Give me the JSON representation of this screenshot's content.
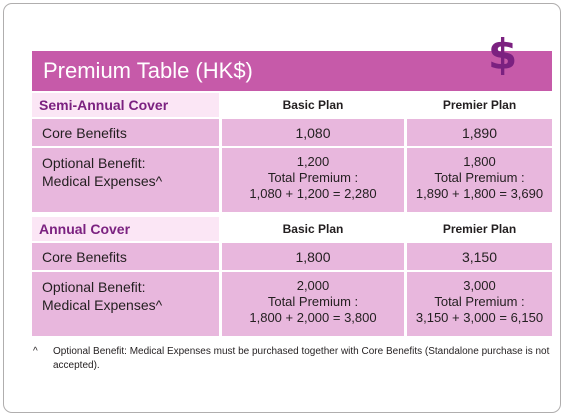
{
  "title": "Premium Table (HK$)",
  "icon_symbol": "$",
  "sections": [
    {
      "name": "Semi-Annual Cover",
      "col1": "Basic Plan",
      "col2": "Premier Plan",
      "core_label": "Core Benefits",
      "core_basic": "1,080",
      "core_premier": "1,890",
      "opt_label_line1": "Optional Benefit:",
      "opt_label_line2": "Medical Expenses^",
      "opt_basic_value": "1,200",
      "opt_basic_total_label": "Total Premium :",
      "opt_basic_total": "1,080 + 1,200 = 2,280",
      "opt_premier_value": "1,800",
      "opt_premier_total_label": "Total Premium :",
      "opt_premier_total": "1,890 + 1,800 = 3,690"
    },
    {
      "name": "Annual Cover",
      "col1": "Basic Plan",
      "col2": "Premier Plan",
      "core_label": "Core Benefits",
      "core_basic": "1,800",
      "core_premier": "3,150",
      "opt_label_line1": "Optional Benefit:",
      "opt_label_line2": "Medical Expenses^",
      "opt_basic_value": "2,000",
      "opt_basic_total_label": "Total Premium :",
      "opt_basic_total": "1,800 + 2,000 = 3,800",
      "opt_premier_value": "3,000",
      "opt_premier_total_label": "Total Premium :",
      "opt_premier_total": "3,150 + 3,000 = 6,150"
    }
  ],
  "footnote": {
    "marker": "^",
    "text": "Optional Benefit: Medical Expenses must be purchased together with Core Benefits (Standalone purchase is not accepted)."
  },
  "colors": {
    "header_bg": "#c65aa9",
    "section_title": "#7b2180",
    "cell_bg": "#e8b7dd",
    "section_bg": "#fbe6f5"
  }
}
